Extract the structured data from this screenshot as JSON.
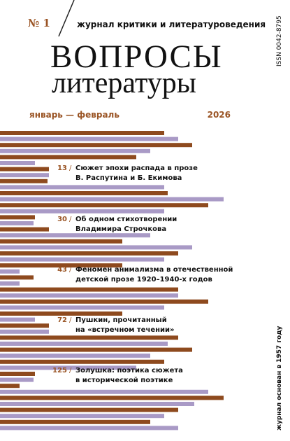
{
  "header": {
    "issue": "№ 1",
    "tagline": "журнал критики и литературоведения",
    "title_line1": "ВОПРОСЫ",
    "title_line2": "литературы",
    "months": "январь — февраль",
    "year": "2026",
    "issn": "ISSN 0042-8795"
  },
  "contents": [
    {
      "page": "13",
      "title_lines": [
        "Сюжет эпохи распада в прозе",
        "В. Распутина и Б. Екимова"
      ]
    },
    {
      "page": "30",
      "title_lines": [
        "Об одном стихотворении",
        "Владимира Строчкова"
      ]
    },
    {
      "page": "43",
      "title_lines": [
        "Феномен анимализма в отечественной",
        "детской прозе 1920–1940-х годов"
      ]
    },
    {
      "page": "72",
      "title_lines": [
        "Пушкин, прочитанный",
        "на «встречном течении»"
      ]
    },
    {
      "page": "125",
      "title_lines": [
        "Золушка: поэтика сюжета",
        "в исторической поэтике"
      ]
    }
  ],
  "footer": {
    "founded": "журнал основан в 1957 году"
  }
}
